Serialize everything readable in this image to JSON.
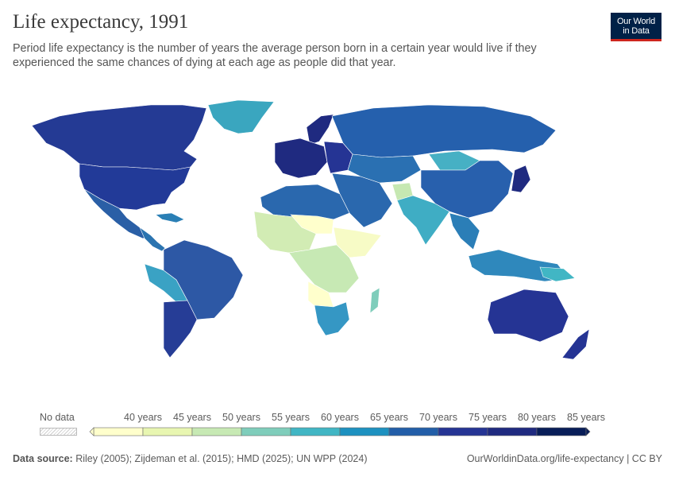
{
  "title": "Life expectancy, 1991",
  "subtitle": "Period life expectancy is the number of years the average person born in a certain year would live if they experienced the same chances of dying at each age as people did that year.",
  "logo": {
    "line1": "Our World",
    "line2": "in Data"
  },
  "legend": {
    "no_data_label": "No data",
    "ticks": [
      "40 years",
      "45 years",
      "50 years",
      "55 years",
      "60 years",
      "65 years",
      "70 years",
      "75 years",
      "80 years",
      "85 years"
    ],
    "colors": [
      "#ffffcc",
      "#e8f6b1",
      "#c7e9b4",
      "#7fcdbb",
      "#41b6c4",
      "#1d91c0",
      "#225ea8",
      "#253494",
      "#1f2a80",
      "#081d58"
    ]
  },
  "footer": {
    "source_label": "Data source:",
    "source_text": "Riley (2005); Zijdeman et al. (2015); HMD (2025); UN WPP (2024)",
    "link": "OurWorldinData.org/life-expectancy | CC BY"
  }
}
